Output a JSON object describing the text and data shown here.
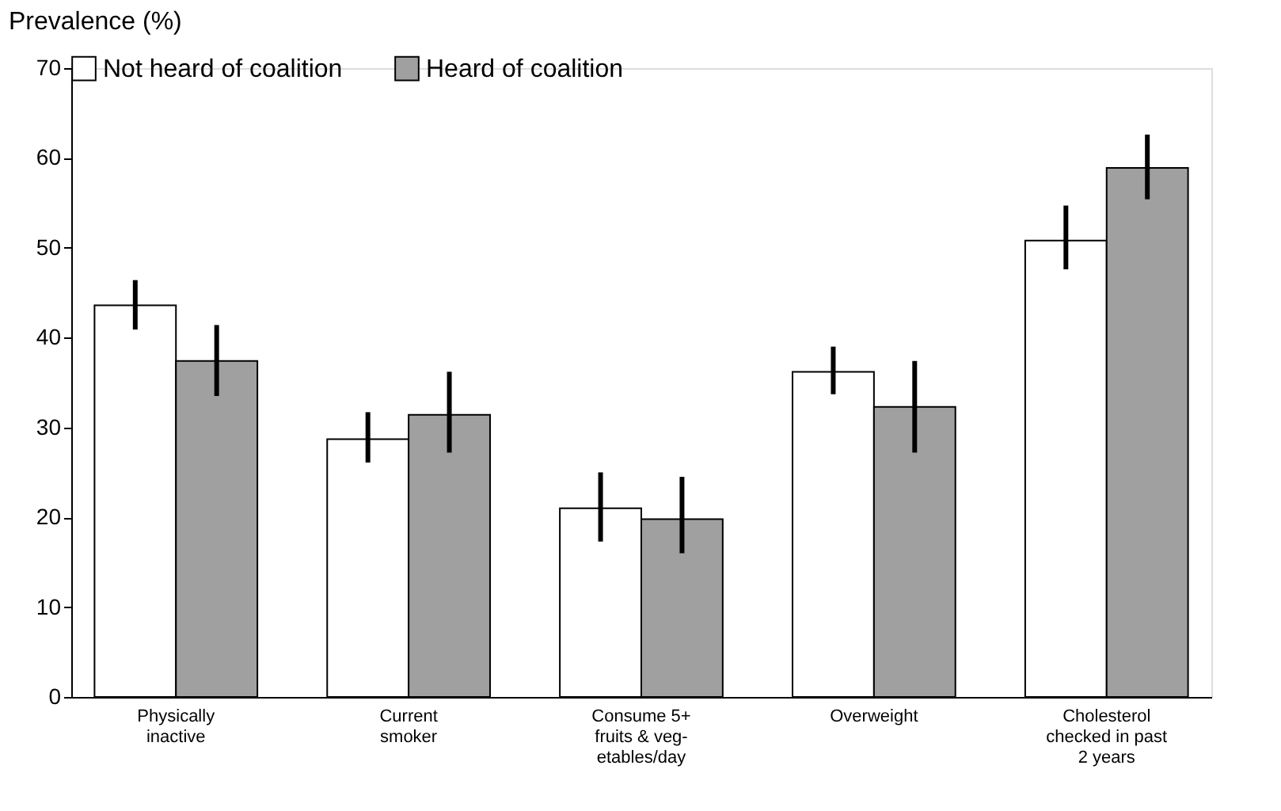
{
  "chart_data": {
    "type": "bar",
    "ylabel": "Prevalence (%)",
    "categories": [
      "Physically\ninactive",
      "Current\nsmoker",
      "Consume 5+\nfruits & veg-\netables/day",
      "Overweight",
      "Cholesterol\nchecked in past\n2 years"
    ],
    "series": [
      {
        "name": "Not heard of coalition",
        "color": "#ffffff",
        "values": [
          43.6,
          28.7,
          21.0,
          36.2,
          50.8
        ],
        "errors": [
          [
            40.9,
            46.4
          ],
          [
            26.1,
            31.7
          ],
          [
            17.3,
            25.0
          ],
          [
            33.7,
            39.0
          ],
          [
            47.6,
            54.7
          ]
        ]
      },
      {
        "name": "Heard of coalition",
        "color": "#a0a0a0",
        "values": [
          37.4,
          31.4,
          19.8,
          32.3,
          58.9
        ],
        "errors": [
          [
            33.5,
            41.4
          ],
          [
            27.2,
            36.2
          ],
          [
            16.0,
            24.5
          ],
          [
            27.2,
            37.4
          ],
          [
            55.4,
            62.6
          ]
        ]
      }
    ],
    "ylim": [
      0,
      70
    ],
    "yticks": [
      0,
      10,
      20,
      30,
      40,
      50,
      60,
      70
    ],
    "grid": false,
    "legend": "top"
  }
}
